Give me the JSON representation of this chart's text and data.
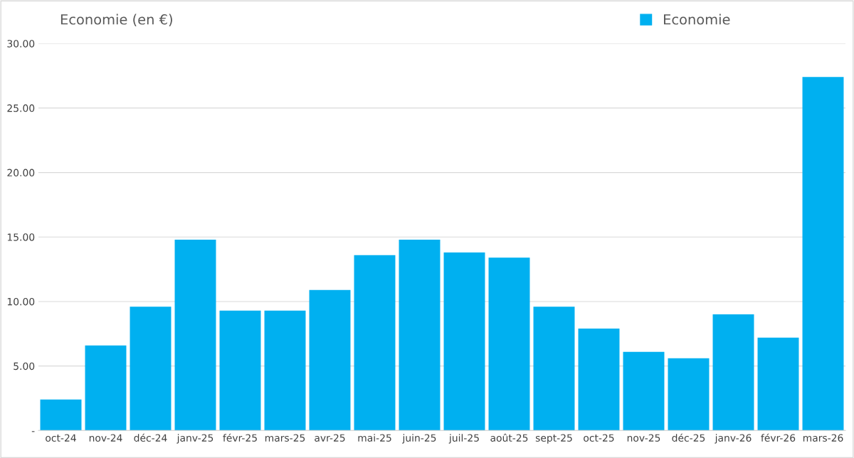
{
  "chart_data": {
    "type": "bar",
    "title": "Economie (en €)",
    "categories": [
      "oct-24",
      "nov-24",
      "déc-24",
      "janv-25",
      "févr-25",
      "mars-25",
      "avr-25",
      "mai-25",
      "juin-25",
      "juil-25",
      "août-25",
      "sept-25",
      "oct-25",
      "nov-25",
      "déc-25",
      "janv-26",
      "févr-26",
      "mars-26"
    ],
    "series": [
      {
        "name": "Economie",
        "color": "#00b0f0",
        "values": [
          2.4,
          6.6,
          9.6,
          14.8,
          9.3,
          9.3,
          10.9,
          13.6,
          14.8,
          13.8,
          13.4,
          9.6,
          7.9,
          6.1,
          5.6,
          9.0,
          7.2,
          27.4
        ]
      }
    ],
    "ylim": [
      0,
      30
    ],
    "yticks": [
      {
        "value": 0,
        "label": "-"
      },
      {
        "value": 5,
        "label": "5.00"
      },
      {
        "value": 10,
        "label": "10.00"
      },
      {
        "value": 15,
        "label": "15.00"
      },
      {
        "value": 20,
        "label": "20.00"
      },
      {
        "value": 25,
        "label": "25.00"
      },
      {
        "value": 30,
        "label": "30.00"
      }
    ],
    "grid": "y",
    "legend": "top right"
  }
}
